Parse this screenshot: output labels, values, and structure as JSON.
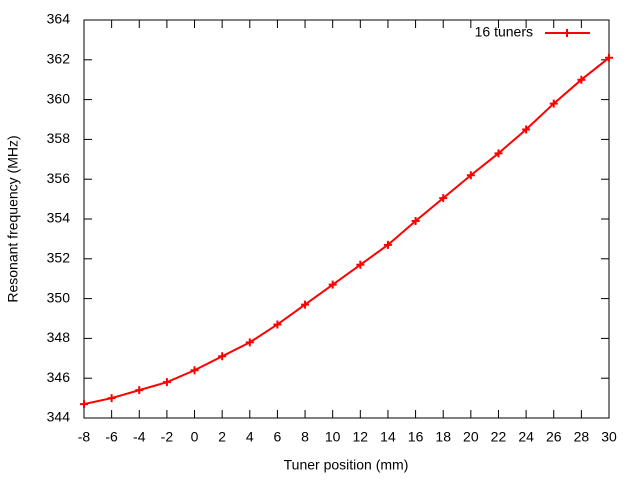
{
  "chart_data": {
    "type": "line",
    "x_label": "Tuner position (mm)",
    "y_label": "Resonant frequency (MHz)",
    "legend": "top-right",
    "series": [
      {
        "name": "16 tuners",
        "color": "#ff0000",
        "x": [
          -8,
          -6,
          -4,
          -2,
          0,
          2,
          4,
          6,
          8,
          10,
          12,
          14,
          16,
          18,
          20,
          22,
          24,
          26,
          28,
          30
        ],
        "values": [
          344.7,
          345.0,
          345.4,
          345.8,
          346.4,
          347.1,
          347.8,
          348.7,
          349.7,
          350.7,
          351.7,
          352.7,
          353.9,
          355.05,
          356.2,
          357.3,
          358.5,
          359.8,
          361.0,
          362.1
        ]
      }
    ],
    "xlim": [
      -8,
      30
    ],
    "xticks": [
      -8,
      -6,
      -4,
      -2,
      0,
      2,
      4,
      6,
      8,
      10,
      12,
      14,
      16,
      18,
      20,
      22,
      24,
      26,
      28,
      30
    ],
    "ylim": [
      344,
      364
    ],
    "yticks": [
      344,
      346,
      348,
      350,
      352,
      354,
      356,
      358,
      360,
      362,
      364
    ]
  }
}
